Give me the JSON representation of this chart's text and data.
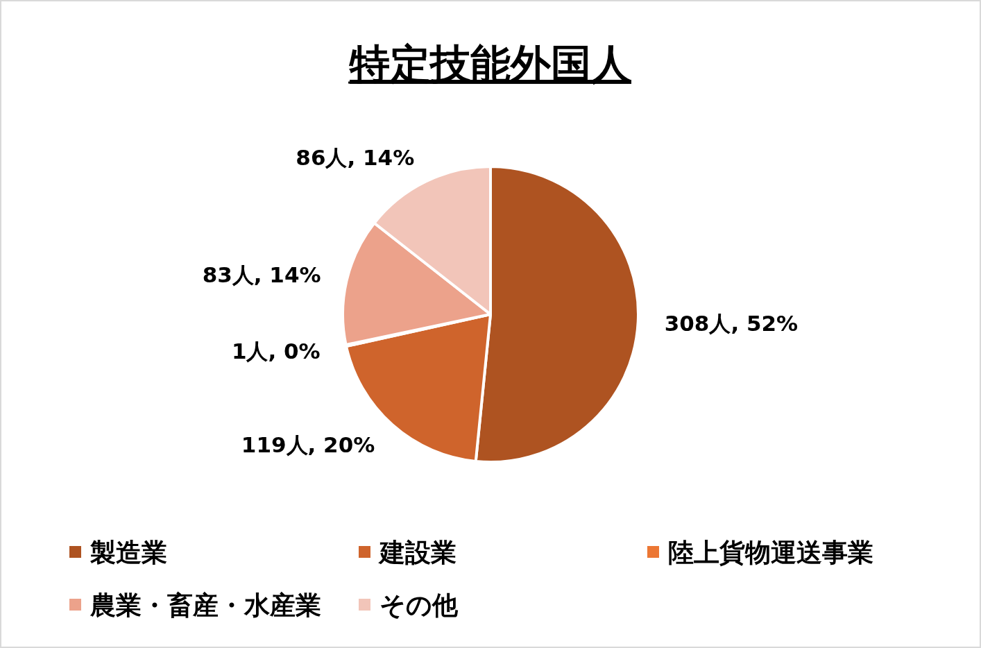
{
  "chart_data": {
    "type": "pie",
    "title": "特定技能外国人",
    "categories": [
      "製造業",
      "建設業",
      "陸上貨物運送事業",
      "農業・畜産・水産業",
      "その他"
    ],
    "values": [
      308,
      119,
      1,
      83,
      86
    ],
    "colors": [
      "#ae5321",
      "#cf642c",
      "#ec7734",
      "#eca28b",
      "#f2c5b9"
    ],
    "value_labels": [
      "308人, 52%",
      "119人, 20%",
      "1人, 0%",
      "83人, 14%",
      "86人, 14%"
    ],
    "legend": "bottom"
  }
}
